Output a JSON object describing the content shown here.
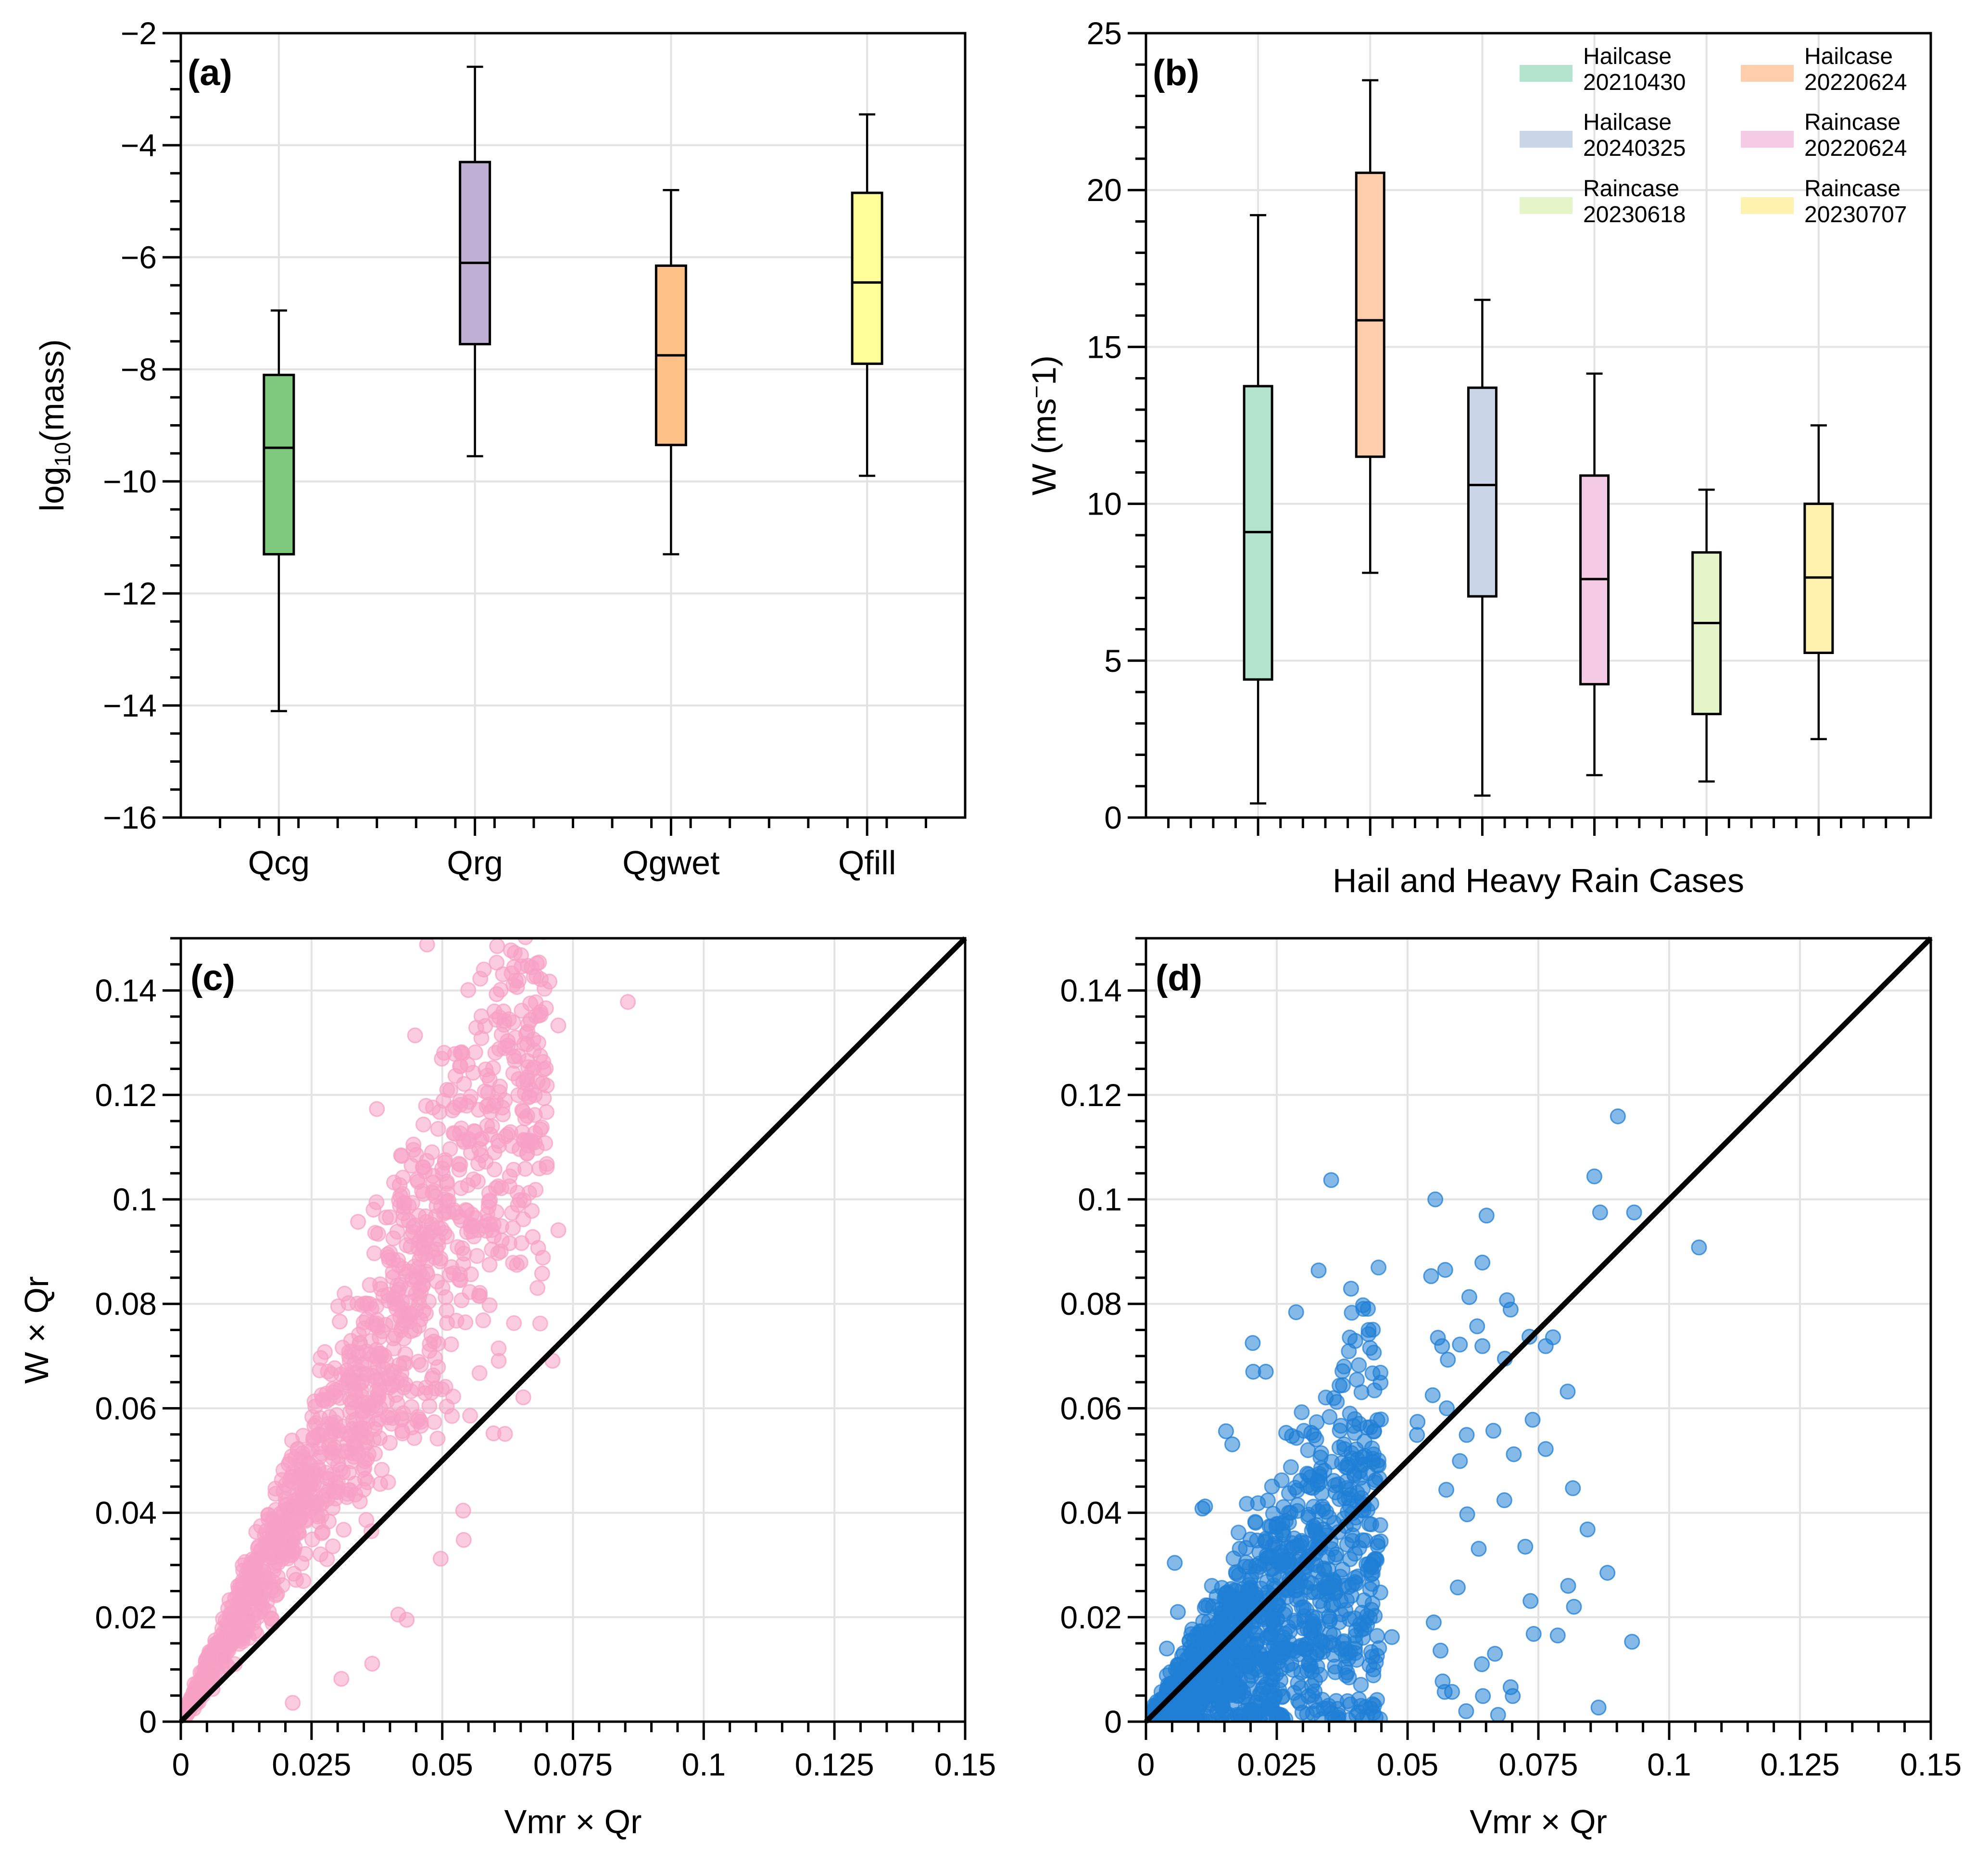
{
  "chart_data": [
    {
      "panel": "a",
      "type": "box",
      "panel_label": "(a)",
      "ylabel": "log10(mass)",
      "ylabel_main": "log",
      "ylabel_sub": "10",
      "ylabel_rest": "(mass)",
      "xlabel": "",
      "ylim": [
        -16,
        -2
      ],
      "yticks": [
        -16,
        -14,
        -12,
        -10,
        -8,
        -6,
        -4,
        -2
      ],
      "ytick_labels": [
        "−16",
        "−14",
        "−12",
        "−10",
        "−8",
        "−6",
        "−4",
        "−2"
      ],
      "grid": true,
      "categories": [
        "Qcg",
        "Qrg",
        "Qgwet",
        "Qfill"
      ],
      "boxes": [
        {
          "name": "Qcg",
          "whislo": -14.1,
          "q1": -11.3,
          "med": -9.4,
          "q3": -8.1,
          "whishi": -6.95,
          "color": "#7fc97f"
        },
        {
          "name": "Qrg",
          "whislo": -9.55,
          "q1": -7.55,
          "med": -6.1,
          "q3": -4.3,
          "whishi": -2.6,
          "color": "#beaed4"
        },
        {
          "name": "Qgwet",
          "whislo": -11.3,
          "q1": -9.35,
          "med": -7.75,
          "q3": -6.15,
          "whishi": -4.8,
          "color": "#fdc086"
        },
        {
          "name": "Qfill",
          "whislo": -9.9,
          "q1": -7.9,
          "med": -6.45,
          "q3": -4.85,
          "whishi": -3.45,
          "color": "#ffff99"
        }
      ]
    },
    {
      "panel": "b",
      "type": "box",
      "panel_label": "(b)",
      "ylabel": "W (ms⁻1)",
      "ylabel_main": "W (ms",
      "ylabel_sup": "−",
      "ylabel_rest": "1)",
      "xlabel": "Hail and Heavy Rain Cases",
      "ylim": [
        0,
        25
      ],
      "yticks": [
        0,
        5,
        10,
        15,
        20,
        25
      ],
      "ytick_labels": [
        "0",
        "5",
        "10",
        "15",
        "20",
        "25"
      ],
      "grid": true,
      "legend_placement": "top-right",
      "boxes": [
        {
          "name": "Hailcase 20210430",
          "line1": "Hailcase",
          "line2": "20210430",
          "whislo": 0.45,
          "q1": 4.4,
          "med": 9.1,
          "q3": 13.75,
          "whishi": 19.2,
          "color": "#b3e2cd"
        },
        {
          "name": "Hailcase 20220624",
          "line1": "Hailcase",
          "line2": "20220624",
          "whislo": 7.8,
          "q1": 11.5,
          "med": 15.85,
          "q3": 20.55,
          "whishi": 23.5,
          "color": "#fdcdac"
        },
        {
          "name": "Hailcase 20240325",
          "line1": "Hailcase",
          "line2": "20240325",
          "whislo": 0.7,
          "q1": 7.05,
          "med": 10.6,
          "q3": 13.7,
          "whishi": 16.5,
          "color": "#cbd5e8"
        },
        {
          "name": "Raincase 20220624",
          "line1": "Raincase",
          "line2": "20220624",
          "whislo": 1.35,
          "q1": 4.25,
          "med": 7.6,
          "q3": 10.9,
          "whishi": 14.15,
          "color": "#f4cae4"
        },
        {
          "name": "Raincase 20230618",
          "line1": "Raincase",
          "line2": "20230618",
          "whislo": 1.15,
          "q1": 3.3,
          "med": 6.2,
          "q3": 8.45,
          "whishi": 10.45,
          "color": "#e6f5c9"
        },
        {
          "name": "Raincase 20230707",
          "line1": "Raincase",
          "line2": "20230707",
          "whislo": 2.5,
          "q1": 5.25,
          "med": 7.65,
          "q3": 10.0,
          "whishi": 12.5,
          "color": "#fff2ae"
        }
      ]
    },
    {
      "panel": "c",
      "type": "scatter",
      "panel_label": "(c)",
      "xlabel": "Vmr × Qr",
      "ylabel": "W  × Qr",
      "xlim": [
        0,
        0.15
      ],
      "ylim": [
        0,
        0.15
      ],
      "xticks": [
        0,
        0.025,
        0.05,
        0.075,
        0.1,
        0.125,
        0.15
      ],
      "xtick_labels": [
        "0",
        "0.025",
        "0.05",
        "0.075",
        "0.1",
        "0.125",
        "0.15"
      ],
      "yticks": [
        0,
        0.02,
        0.04,
        0.06,
        0.08,
        0.1,
        0.12,
        0.14
      ],
      "ytick_labels": [
        "0",
        "0.02",
        "0.04",
        "0.06",
        "0.08",
        "0.1",
        "0.12",
        "0.14"
      ],
      "grid": true,
      "color": "#f7a1c4",
      "reference_line": {
        "name": "1:1 line",
        "from": [
          0,
          0
        ],
        "to": [
          0.15,
          0.15
        ]
      },
      "cloud": {
        "n": 1400,
        "x_max": 0.07,
        "slope": 1.85,
        "spread": 0.17,
        "seed": 11
      },
      "points": [
        [
          0.0855,
          0.1378
        ],
        [
          0.0705,
          0.1417
        ],
        [
          0.0722,
          0.1333
        ],
        [
          0.0448,
          0.1314
        ],
        [
          0.0375,
          0.1173
        ],
        [
          0.0616,
          0.1431
        ],
        [
          0.0582,
          0.1332
        ],
        [
          0.0646,
          0.1274
        ],
        [
          0.0692,
          0.1222
        ],
        [
          0.0722,
          0.0941
        ],
        [
          0.0711,
          0.0691
        ],
        [
          0.0655,
          0.0621
        ],
        [
          0.0339,
          0.0957
        ],
        [
          0.0304,
          0.0766
        ],
        [
          0.054,
          0.0404
        ],
        [
          0.0416,
          0.0205
        ],
        [
          0.0432,
          0.0195
        ],
        [
          0.0366,
          0.0111
        ],
        [
          0.0307,
          0.0082
        ],
        [
          0.0214,
          0.0036
        ],
        [
          0.0497,
          0.0312
        ],
        [
          0.0541,
          0.0348
        ],
        [
          0.0598,
          0.0552
        ],
        [
          0.062,
          0.0551
        ],
        [
          0.0471,
          0.1488
        ],
        [
          0.0605,
          0.1485
        ],
        [
          0.0604,
          0.1393
        ],
        [
          0.0688,
          0.1134
        ],
        [
          0.0673,
          0.0928
        ],
        [
          0.0691,
          0.0858
        ]
      ]
    },
    {
      "panel": "d",
      "type": "scatter",
      "panel_label": "(d)",
      "xlabel": "Vmr  × Qr",
      "ylabel": "",
      "xlim": [
        0,
        0.15
      ],
      "ylim": [
        0,
        0.15
      ],
      "xticks": [
        0,
        0.025,
        0.05,
        0.075,
        0.1,
        0.125,
        0.15
      ],
      "xtick_labels": [
        "0",
        "0.025",
        "0.05",
        "0.075",
        "0.1",
        "0.125",
        "0.15"
      ],
      "yticks": [
        0,
        0.02,
        0.04,
        0.06,
        0.08,
        0.1,
        0.12,
        0.14
      ],
      "ytick_labels": [
        "0",
        "0.02",
        "0.04",
        "0.06",
        "0.08",
        "0.1",
        "0.12",
        "0.14"
      ],
      "grid": true,
      "color": "#1f7fd6",
      "reference_line": {
        "name": "1:1 line",
        "from": [
          0,
          0
        ],
        "to": [
          0.15,
          0.15
        ]
      },
      "cloud": {
        "n": 1400,
        "x_max": 0.045,
        "slope": 0.85,
        "spread": 0.6,
        "seed": 23
      },
      "points": [
        [
          0.0902,
          0.1159
        ],
        [
          0.0857,
          0.1044
        ],
        [
          0.0354,
          0.1037
        ],
        [
          0.0553,
          0.1
        ],
        [
          0.0651,
          0.0969
        ],
        [
          0.0868,
          0.0975
        ],
        [
          0.0933,
          0.0975
        ],
        [
          0.1057,
          0.0908
        ],
        [
          0.0643,
          0.0879
        ],
        [
          0.033,
          0.0864
        ],
        [
          0.0572,
          0.0865
        ],
        [
          0.0545,
          0.0853
        ],
        [
          0.0392,
          0.0829
        ],
        [
          0.0287,
          0.0784
        ],
        [
          0.0618,
          0.0813
        ],
        [
          0.069,
          0.0807
        ],
        [
          0.0697,
          0.0789
        ],
        [
          0.0633,
          0.0757
        ],
        [
          0.0733,
          0.0737
        ],
        [
          0.0778,
          0.0736
        ],
        [
          0.0204,
          0.0725
        ],
        [
          0.0764,
          0.0719
        ],
        [
          0.06,
          0.0722
        ],
        [
          0.0643,
          0.0719
        ],
        [
          0.0566,
          0.0719
        ],
        [
          0.0558,
          0.0735
        ],
        [
          0.04,
          0.0729
        ],
        [
          0.0686,
          0.0695
        ],
        [
          0.0577,
          0.0693
        ],
        [
          0.0205,
          0.067
        ],
        [
          0.0229,
          0.067
        ],
        [
          0.0806,
          0.0632
        ],
        [
          0.0548,
          0.0625
        ],
        [
          0.0575,
          0.06
        ],
        [
          0.0739,
          0.0578
        ],
        [
          0.0613,
          0.0549
        ],
        [
          0.0664,
          0.0557
        ],
        [
          0.0764,
          0.0522
        ],
        [
          0.0703,
          0.0512
        ],
        [
          0.06,
          0.0499
        ],
        [
          0.0816,
          0.0447
        ],
        [
          0.0574,
          0.0444
        ],
        [
          0.0685,
          0.0424
        ],
        [
          0.0844,
          0.0368
        ],
        [
          0.0614,
          0.0397
        ],
        [
          0.0725,
          0.0335
        ],
        [
          0.0882,
          0.0285
        ],
        [
          0.0636,
          0.0331
        ],
        [
          0.0807,
          0.026
        ],
        [
          0.0818,
          0.022
        ],
        [
          0.0735,
          0.0231
        ],
        [
          0.0741,
          0.0168
        ],
        [
          0.0787,
          0.0165
        ],
        [
          0.0929,
          0.0153
        ],
        [
          0.0596,
          0.0257
        ],
        [
          0.0667,
          0.013
        ],
        [
          0.0642,
          0.011
        ],
        [
          0.0697,
          0.0066
        ],
        [
          0.0701,
          0.0049
        ],
        [
          0.0644,
          0.0049
        ],
        [
          0.0865,
          0.0027
        ],
        [
          0.0673,
          0.0013
        ],
        [
          0.0612,
          0.002
        ],
        [
          0.0571,
          0.0057
        ],
        [
          0.0585,
          0.0057
        ],
        [
          0.0567,
          0.0077
        ],
        [
          0.0563,
          0.0136
        ],
        [
          0.055,
          0.019
        ],
        [
          0.047,
          0.0162
        ],
        [
          0.0165,
          0.0531
        ],
        [
          0.0153,
          0.0556
        ],
        [
          0.0268,
          0.0553
        ],
        [
          0.0316,
          0.0553
        ],
        [
          0.0518,
          0.0549
        ],
        [
          0.0519,
          0.0574
        ],
        [
          0.0108,
          0.0408
        ],
        [
          0.0113,
          0.0412
        ],
        [
          0.0055,
          0.0304
        ],
        [
          0.004,
          0.014
        ],
        [
          0.0061,
          0.021
        ]
      ]
    }
  ]
}
